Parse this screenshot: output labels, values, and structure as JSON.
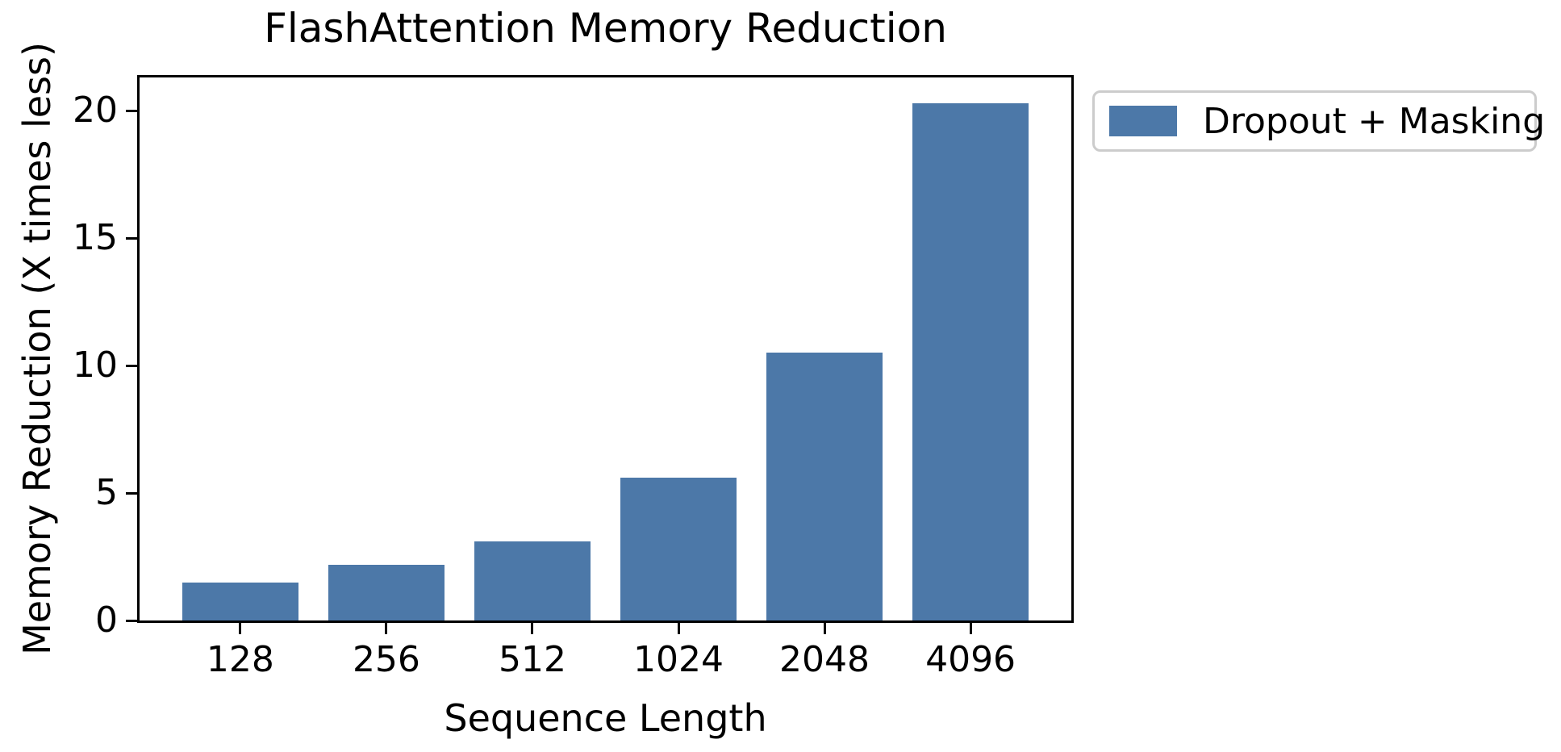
{
  "chart_data": {
    "type": "bar",
    "title": "FlashAttention Memory Reduction",
    "xlabel": "Sequence Length",
    "ylabel": "Memory Reduction (X times less)",
    "categories": [
      "128",
      "256",
      "512",
      "1024",
      "2048",
      "4096"
    ],
    "values": [
      1.5,
      2.2,
      3.1,
      5.6,
      10.5,
      20.3
    ],
    "yticks": [
      0,
      5,
      10,
      15,
      20
    ],
    "ylim": [
      0,
      21.3
    ],
    "xlim_units": [
      -0.69,
      5.69
    ],
    "bar_width_units": 0.8,
    "bar_color": "#4C78A8",
    "spine_color": "#000000",
    "background_color": "#ffffff",
    "grid": false,
    "legend": {
      "position": "outside-upper-right",
      "entries": [
        {
          "label": "Dropout + Masking",
          "color": "#4C78A8"
        }
      ]
    }
  }
}
